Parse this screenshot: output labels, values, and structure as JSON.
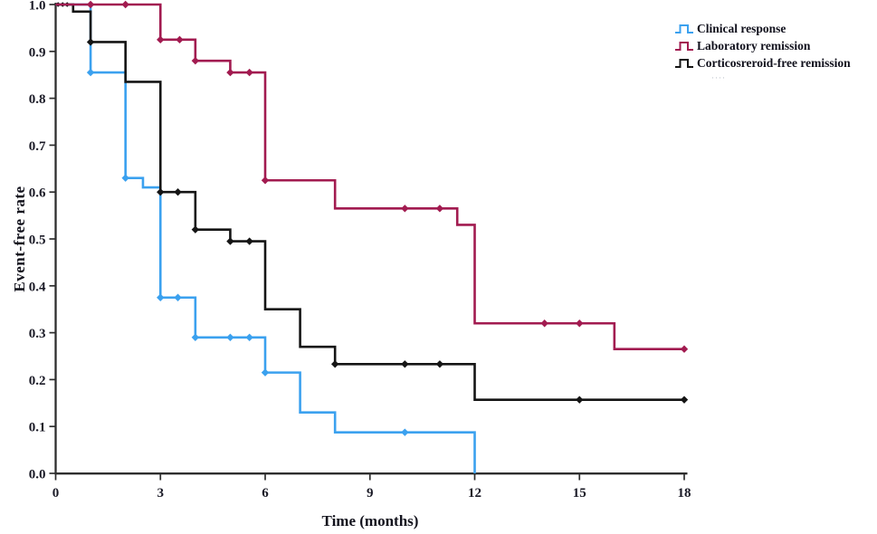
{
  "page": {
    "background": "#ffffff"
  },
  "chart_data": {
    "type": "line",
    "subtype": "kaplan-meier-step",
    "title": "",
    "xlabel": "Time (months)",
    "ylabel": "Event-free rate",
    "xlim": [
      0,
      18
    ],
    "ylim": [
      0.0,
      1.0
    ],
    "grid": false,
    "legend_position": "top-right",
    "axis_color": "#2e2e2e",
    "text_color": "#1a1a26",
    "x_ticks": [
      0,
      3,
      6,
      9,
      12,
      15,
      18
    ],
    "y_ticks": [
      0.0,
      0.1,
      0.2,
      0.3,
      0.4,
      0.5,
      0.6,
      0.7,
      0.8,
      0.9,
      1.0
    ],
    "series": [
      {
        "name": "Clinical response",
        "color": "#3ba1ef",
        "end_time": 12,
        "steps": [
          [
            0,
            1.0
          ],
          [
            1,
            0.855
          ],
          [
            2,
            0.63
          ],
          [
            2.5,
            0.61
          ],
          [
            3,
            0.375
          ],
          [
            4,
            0.29
          ],
          [
            6,
            0.215
          ],
          [
            7,
            0.13
          ],
          [
            8,
            0.0875
          ],
          [
            12,
            0.0
          ]
        ],
        "censor_markers": [
          [
            1,
            0.855
          ],
          [
            2,
            0.63
          ],
          [
            3,
            0.375
          ],
          [
            3.5,
            0.375
          ],
          [
            4,
            0.29
          ],
          [
            5,
            0.29
          ],
          [
            5.55,
            0.29
          ],
          [
            6,
            0.215
          ],
          [
            10,
            0.0875
          ]
        ]
      },
      {
        "name": "Corticosreroid-free remission",
        "color": "#151515",
        "end_time": 18,
        "steps": [
          [
            0,
            1.0
          ],
          [
            0.5,
            0.985
          ],
          [
            1,
            0.92
          ],
          [
            2,
            0.835
          ],
          [
            3,
            0.6
          ],
          [
            4,
            0.52
          ],
          [
            5,
            0.495
          ],
          [
            6,
            0.35
          ],
          [
            7,
            0.27
          ],
          [
            8,
            0.233
          ],
          [
            12,
            0.157
          ]
        ],
        "censor_markers": [
          [
            0.07,
            1.0
          ],
          [
            0.2,
            1.0
          ],
          [
            0.33,
            1.0
          ],
          [
            1,
            0.92
          ],
          [
            3,
            0.6
          ],
          [
            3.5,
            0.6
          ],
          [
            4,
            0.52
          ],
          [
            5,
            0.495
          ],
          [
            5.55,
            0.495
          ],
          [
            8,
            0.233
          ],
          [
            10,
            0.233
          ],
          [
            11,
            0.233
          ],
          [
            15,
            0.157
          ],
          [
            18,
            0.157
          ]
        ]
      },
      {
        "name": "Laboratory remission",
        "color": "#a21b50",
        "end_time": 18,
        "steps": [
          [
            0,
            1.0
          ],
          [
            3,
            0.925
          ],
          [
            4,
            0.88
          ],
          [
            5,
            0.855
          ],
          [
            6,
            0.625
          ],
          [
            8,
            0.565
          ],
          [
            11.5,
            0.53
          ],
          [
            12,
            0.32
          ],
          [
            16,
            0.265
          ]
        ],
        "censor_markers": [
          [
            1,
            1.0
          ],
          [
            2,
            1.0
          ],
          [
            3,
            0.925
          ],
          [
            3.55,
            0.925
          ],
          [
            4,
            0.88
          ],
          [
            5,
            0.855
          ],
          [
            5.55,
            0.855
          ],
          [
            6,
            0.625
          ],
          [
            10,
            0.565
          ],
          [
            11,
            0.565
          ],
          [
            14,
            0.32
          ],
          [
            15,
            0.32
          ],
          [
            18,
            0.265
          ]
        ]
      }
    ],
    "legend_order": [
      0,
      2,
      1
    ]
  },
  "legend": {
    "truncated_item_mark": "····"
  }
}
